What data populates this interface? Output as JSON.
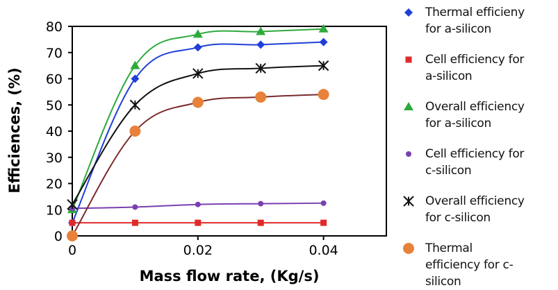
{
  "chart_data": {
    "type": "scatter",
    "title": "",
    "xlabel": "Mass flow rate, (Kg/s)",
    "ylabel": "Efficiences, (%)",
    "xlim": [
      0,
      0.05
    ],
    "ylim": [
      0,
      80
    ],
    "xticks": [
      "0",
      "0.02",
      "0.04"
    ],
    "xtick_values": [
      0,
      0.02,
      0.04
    ],
    "yticks": [
      "0",
      "10",
      "20",
      "30",
      "40",
      "50",
      "60",
      "70",
      "80"
    ],
    "ytick_values": [
      0,
      10,
      20,
      30,
      40,
      50,
      60,
      70,
      80
    ],
    "grid": false,
    "legend_position": "right",
    "series": [
      {
        "name": "Thermal efficieny for a-silicon",
        "marker": "diamond",
        "color": "#1f3fd8",
        "x": [
          0,
          0.01,
          0.02,
          0.03,
          0.04
        ],
        "y": [
          5,
          60,
          72,
          73,
          74
        ]
      },
      {
        "name": "Cell efficiency for a-silicon",
        "marker": "square",
        "color": "#e02a2a",
        "x": [
          0,
          0.01,
          0.02,
          0.03,
          0.04
        ],
        "y": [
          5,
          5,
          5,
          5,
          5
        ]
      },
      {
        "name": "Overall efficiency for a-silicon",
        "marker": "triangle",
        "color": "#2eaa3c",
        "x": [
          0,
          0.01,
          0.02,
          0.03,
          0.04
        ],
        "y": [
          10,
          65,
          77,
          78,
          79
        ]
      },
      {
        "name": "Cell efficiency for c-silicon",
        "marker": "circle-small",
        "color": "#7a3fb0",
        "x": [
          0,
          0.01,
          0.02,
          0.03,
          0.04
        ],
        "y": [
          10.5,
          11,
          12,
          12.3,
          12.5
        ]
      },
      {
        "name": "Overall efficiency for c-silicon",
        "marker": "star",
        "color": "#111111",
        "x": [
          0,
          0.01,
          0.02,
          0.03,
          0.04
        ],
        "y": [
          12,
          50,
          62,
          64,
          65
        ]
      },
      {
        "name": "Thermal efficiency for c-silicon",
        "marker": "circle",
        "color": "#e8823a",
        "x": [
          0,
          0.01,
          0.02,
          0.03,
          0.04
        ],
        "y": [
          0,
          40,
          51,
          53,
          54
        ]
      }
    ],
    "trendline_colors": [
      "#1f3fd8",
      "#e02a2a",
      "#2eaa3c",
      "#7a3fb0",
      "#111111",
      "#7a2a2a"
    ]
  },
  "legend": {
    "items": [
      {
        "label": "Thermal efficieny for a-silicon",
        "lines": [
          "Thermal efficieny",
          "for a-silicon"
        ]
      },
      {
        "label": "Cell efficiency for a-silicon",
        "lines": [
          "Cell efficiency for",
          "a-silicon"
        ]
      },
      {
        "label": "Overall efficiency for a-silicon",
        "lines": [
          "Overall efficiency",
          "for a-silicon"
        ]
      },
      {
        "label": "Cell efficiency for c-silicon",
        "lines": [
          "Cell efficiency for",
          "c-silicon"
        ]
      },
      {
        "label": "Overall efficiency for c-silicon",
        "lines": [
          "Overall efficiency",
          "for c-silicon"
        ]
      },
      {
        "label": "Thermal efficiency for c-silicon",
        "lines": [
          "Thermal",
          "efficiency for c-",
          "silicon"
        ]
      }
    ]
  }
}
